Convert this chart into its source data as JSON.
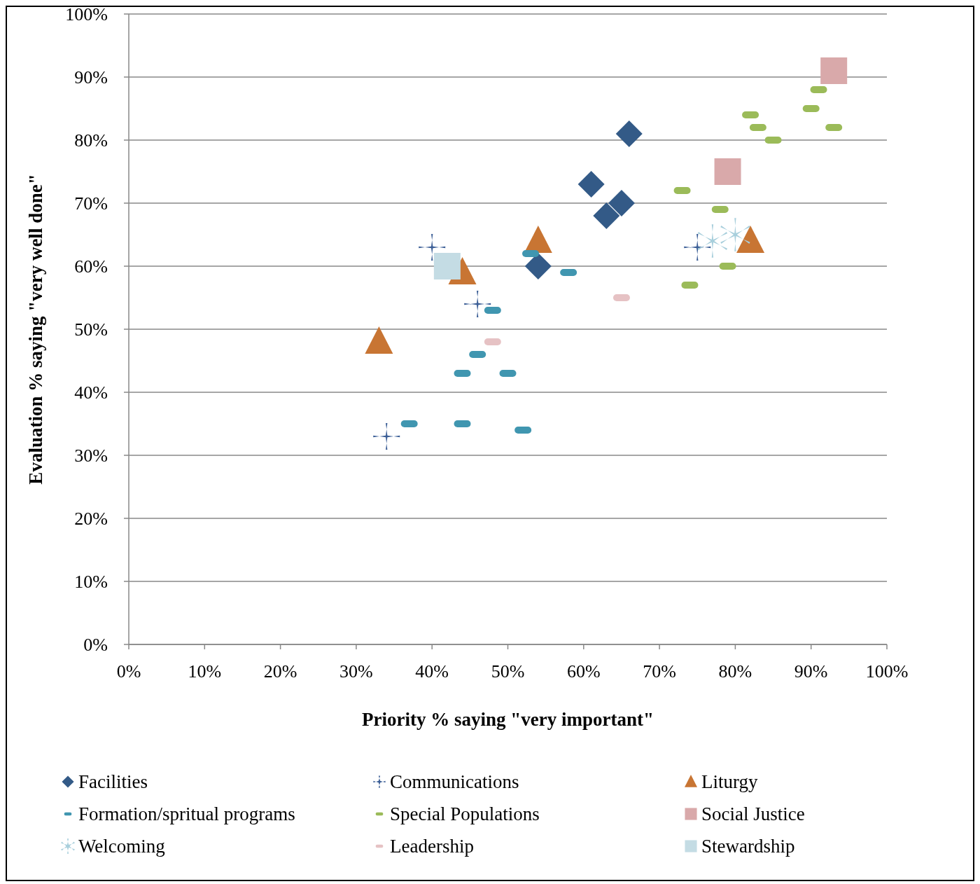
{
  "chart_data": {
    "type": "scatter",
    "xlabel": "Priority % saying \"very important\"",
    "ylabel": "Evaluation % saying \"very well done\"",
    "xlim": [
      0,
      1
    ],
    "ylim": [
      0,
      1
    ],
    "xticks": [
      {
        "value": 0,
        "label": "0%"
      },
      {
        "value": 0.1,
        "label": "10%"
      },
      {
        "value": 0.2,
        "label": "20%"
      },
      {
        "value": 0.3,
        "label": "30%"
      },
      {
        "value": 0.4,
        "label": "40%"
      },
      {
        "value": 0.5,
        "label": "50%"
      },
      {
        "value": 0.6,
        "label": "60%"
      },
      {
        "value": 0.7,
        "label": "70%"
      },
      {
        "value": 0.8,
        "label": "80%"
      },
      {
        "value": 0.9,
        "label": "90%"
      },
      {
        "value": 1,
        "label": "100%"
      }
    ],
    "yticks": [
      {
        "value": 0,
        "label": "0%"
      },
      {
        "value": 0.1,
        "label": "10%"
      },
      {
        "value": 0.2,
        "label": "20%"
      },
      {
        "value": 0.3,
        "label": "30%"
      },
      {
        "value": 0.4,
        "label": "40%"
      },
      {
        "value": 0.5,
        "label": "50%"
      },
      {
        "value": 0.6,
        "label": "60%"
      },
      {
        "value": 0.7,
        "label": "70%"
      },
      {
        "value": 0.8,
        "label": "80%"
      },
      {
        "value": 0.9,
        "label": "90%"
      },
      {
        "value": 1,
        "label": "100%"
      }
    ],
    "grid": "y",
    "legend": "bottom",
    "series": [
      {
        "name": "Facilities",
        "color": "#335a87",
        "marker": "diamond",
        "x": [
          0.66,
          0.61,
          0.65,
          0.63,
          0.54
        ],
        "values": [
          0.81,
          0.73,
          0.7,
          0.68,
          0.6
        ]
      },
      {
        "name": "Communications",
        "color": "#3b5e96",
        "marker": "cross",
        "x": [
          0.4,
          0.46,
          0.34,
          0.75
        ],
        "values": [
          0.63,
          0.54,
          0.33,
          0.63
        ]
      },
      {
        "name": "Liturgy",
        "color": "#c87533",
        "marker": "triangle",
        "x": [
          0.54,
          0.44,
          0.33,
          0.82
        ],
        "values": [
          0.64,
          0.59,
          0.48,
          0.64
        ]
      },
      {
        "name": "Formation/spritual programs",
        "color": "#4096b0",
        "x": [
          0.53,
          0.58,
          0.48,
          0.46,
          0.44,
          0.5,
          0.37,
          0.44,
          0.52
        ],
        "values": [
          0.62,
          0.59,
          0.53,
          0.46,
          0.43,
          0.43,
          0.35,
          0.35,
          0.34
        ]
      },
      {
        "name": "Special Populations",
        "color": "#9bbb59",
        "x": [
          0.91,
          0.9,
          0.82,
          0.83,
          0.93,
          0.85,
          0.73,
          0.78,
          0.79,
          0.74
        ],
        "values": [
          0.88,
          0.85,
          0.84,
          0.82,
          0.82,
          0.8,
          0.72,
          0.69,
          0.6,
          0.57
        ]
      },
      {
        "name": "Social Justice",
        "color": "#d9a9aa",
        "marker": "square",
        "x": [
          0.93,
          0.79
        ],
        "values": [
          0.91,
          0.75
        ]
      },
      {
        "name": "Welcoming",
        "color": "#a8cfdc",
        "marker": "star",
        "x": [
          0.77,
          0.8
        ],
        "values": [
          0.64,
          0.65
        ]
      },
      {
        "name": "Leadership",
        "color": "#e6c2c4",
        "x": [
          0.48,
          0.65
        ],
        "values": [
          0.48,
          0.55
        ]
      },
      {
        "name": "Stewardship",
        "color": "#c4dce4",
        "marker": "square",
        "x": [
          0.42
        ],
        "values": [
          0.6
        ]
      }
    ]
  }
}
